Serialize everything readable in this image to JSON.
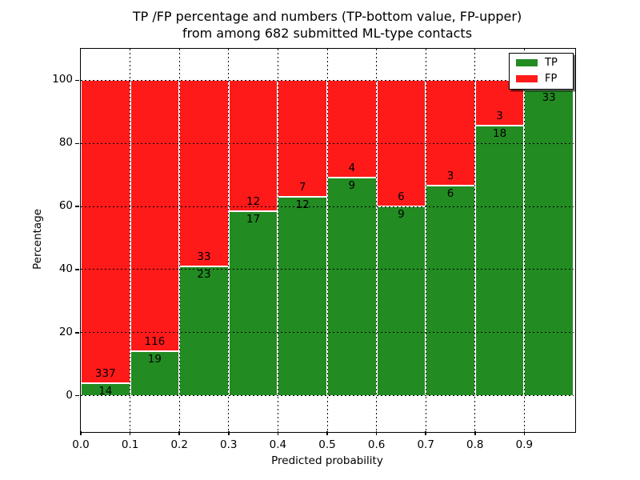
{
  "chart_data": {
    "type": "bar",
    "stacked": true,
    "title_line1": "TP /FP percentage and numbers (TP-bottom value, FP-upper)",
    "title_line2": "from among 682 submitted ML-type contacts",
    "xlabel": "Predicted probability",
    "ylabel": "Percentage",
    "xlim": [
      0.0,
      1.0
    ],
    "ylim": [
      -11,
      110
    ],
    "xticks": [
      0.0,
      0.1,
      0.2,
      0.3,
      0.4,
      0.5,
      0.6,
      0.7,
      0.8,
      0.9
    ],
    "xtick_labels": [
      "0.0",
      "0.1",
      "0.2",
      "0.3",
      "0.4",
      "0.5",
      "0.6",
      "0.7",
      "0.8",
      "0.9"
    ],
    "yticks": [
      0,
      20,
      40,
      60,
      80,
      100
    ],
    "ytick_labels": [
      "0",
      "20",
      "40",
      "60",
      "80",
      "100"
    ],
    "x_gridlines": [
      0.1,
      0.2,
      0.3,
      0.4,
      0.5,
      0.6,
      0.7,
      0.8,
      0.9
    ],
    "grid_style": "dotted-black",
    "legend_position": "upper-right",
    "legend": [
      {
        "label": "TP",
        "color_key": "tp"
      },
      {
        "label": "FP",
        "color_key": "fp"
      }
    ],
    "colors": {
      "tp": "#228b22",
      "fp": "#ff1a1a",
      "bar_edge": "#ffffff",
      "grid": "#000000"
    },
    "bins": [
      {
        "range": [
          0.0,
          0.1
        ],
        "tp": 14,
        "fp": 337,
        "tp_label": "14",
        "fp_label": "337",
        "tp_pct": 3.99
      },
      {
        "range": [
          0.1,
          0.2
        ],
        "tp": 19,
        "fp": 116,
        "tp_label": "19",
        "fp_label": "116",
        "tp_pct": 14.07
      },
      {
        "range": [
          0.2,
          0.3
        ],
        "tp": 23,
        "fp": 33,
        "tp_label": "23",
        "fp_label": "33",
        "tp_pct": 41.07
      },
      {
        "range": [
          0.3,
          0.4
        ],
        "tp": 17,
        "fp": 12,
        "tp_label": "17",
        "fp_label": "12",
        "tp_pct": 58.62
      },
      {
        "range": [
          0.4,
          0.5
        ],
        "tp": 12,
        "fp": 7,
        "tp_label": "12",
        "fp_label": "7",
        "tp_pct": 63.16
      },
      {
        "range": [
          0.5,
          0.6
        ],
        "tp": 9,
        "fp": 4,
        "tp_label": "9",
        "fp_label": "4",
        "tp_pct": 69.23
      },
      {
        "range": [
          0.6,
          0.7
        ],
        "tp": 9,
        "fp": 6,
        "tp_label": "9",
        "fp_label": "6",
        "tp_pct": 60.0
      },
      {
        "range": [
          0.7,
          0.8
        ],
        "tp": 6,
        "fp": 3,
        "tp_label": "6",
        "fp_label": "3",
        "tp_pct": 66.67
      },
      {
        "range": [
          0.8,
          0.9
        ],
        "tp": 18,
        "fp": 3,
        "tp_label": "18",
        "fp_label": "3",
        "tp_pct": 85.71
      },
      {
        "range": [
          0.9,
          1.0
        ],
        "tp": 33,
        "fp": null,
        "tp_label": "33",
        "fp_label": "",
        "tp_pct": 97.06
      }
    ]
  }
}
